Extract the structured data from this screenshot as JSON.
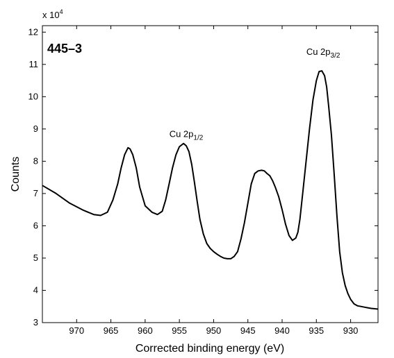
{
  "chart_data": {
    "type": "line",
    "panel_label": "445–3",
    "xlabel": "Corrected binding energy (eV)",
    "ylabel": "Counts",
    "y_multiplier": "x 10",
    "y_multiplier_exp": "4",
    "x_reversed": true,
    "xlim": [
      975,
      926
    ],
    "ylim": [
      3,
      12.2
    ],
    "xticks": [
      970,
      965,
      960,
      955,
      950,
      945,
      940,
      935,
      930
    ],
    "yticks": [
      3,
      4,
      5,
      6,
      7,
      8,
      9,
      10,
      11,
      12
    ],
    "grid": false,
    "annotations": [
      {
        "base": "Cu 2p",
        "sub": "1/2",
        "x": 954,
        "y": 8.75
      },
      {
        "base": "Cu 2p",
        "sub": "3/2",
        "x": 934,
        "y": 11.3
      }
    ],
    "series": [
      {
        "x": [
          975,
          973,
          971,
          969,
          967.5,
          966.5,
          965.5,
          964.7,
          964,
          963.5,
          963,
          962.5,
          962.2,
          961.8,
          961.3,
          960.8,
          960,
          959,
          958.2,
          957.5,
          957,
          956.5,
          956,
          955.5,
          955,
          954.4,
          954,
          953.6,
          953.2,
          952.8,
          952.4,
          952,
          951.5,
          951,
          950.5,
          950,
          949.5,
          949,
          948.5,
          948,
          947.5,
          947,
          946.5,
          946,
          945.5,
          945,
          944.5,
          944,
          943.5,
          943,
          942.6,
          942.2,
          941.8,
          941.4,
          941,
          940.5,
          940,
          939.5,
          939,
          938.5,
          938,
          937.7,
          937.4,
          937,
          936.5,
          936,
          935.5,
          935,
          934.6,
          934.2,
          933.8,
          933.5,
          933.2,
          932.8,
          932.4,
          932,
          931.6,
          931.2,
          930.8,
          930.4,
          930,
          929.5,
          929,
          928.5,
          928,
          927.5,
          927,
          926.5,
          926
        ],
        "values": [
          7.25,
          7.0,
          6.7,
          6.48,
          6.35,
          6.32,
          6.42,
          6.8,
          7.3,
          7.8,
          8.2,
          8.42,
          8.38,
          8.2,
          7.8,
          7.2,
          6.62,
          6.42,
          6.35,
          6.45,
          6.8,
          7.3,
          7.8,
          8.2,
          8.45,
          8.55,
          8.48,
          8.3,
          7.9,
          7.35,
          6.75,
          6.2,
          5.75,
          5.45,
          5.3,
          5.2,
          5.12,
          5.05,
          5.0,
          4.98,
          4.98,
          5.05,
          5.2,
          5.6,
          6.1,
          6.7,
          7.3,
          7.62,
          7.7,
          7.72,
          7.7,
          7.62,
          7.55,
          7.4,
          7.2,
          6.9,
          6.5,
          6.05,
          5.7,
          5.55,
          5.62,
          5.8,
          6.2,
          7.0,
          8.0,
          9.0,
          9.9,
          10.5,
          10.78,
          10.8,
          10.65,
          10.3,
          9.7,
          8.8,
          7.6,
          6.3,
          5.2,
          4.55,
          4.15,
          3.9,
          3.72,
          3.58,
          3.52,
          3.5,
          3.48,
          3.46,
          3.44,
          3.43,
          3.42
        ]
      }
    ]
  }
}
